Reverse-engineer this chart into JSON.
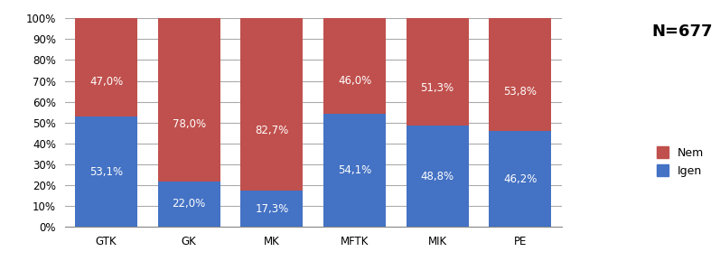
{
  "categories": [
    "GTK",
    "GK",
    "MK",
    "MFTK",
    "MIK",
    "PE"
  ],
  "igen_values": [
    53.1,
    22.0,
    17.3,
    54.1,
    48.8,
    46.2
  ],
  "nem_values": [
    47.0,
    78.0,
    82.7,
    46.0,
    51.3,
    53.8
  ],
  "igen_labels": [
    "53,1%",
    "22,0%",
    "17,3%",
    "54,1%",
    "48,8%",
    "46,2%"
  ],
  "nem_labels": [
    "47,0%",
    "78,0%",
    "82,7%",
    "46,0%",
    "51,3%",
    "53,8%"
  ],
  "igen_color": "#4472C4",
  "nem_color": "#C0504D",
  "bar_width": 0.75,
  "title_annotation": "N=677",
  "ylabel_ticks": [
    "0%",
    "10%",
    "20%",
    "30%",
    "40%",
    "50%",
    "60%",
    "70%",
    "80%",
    "90%",
    "100%"
  ],
  "ytick_vals": [
    0,
    10,
    20,
    30,
    40,
    50,
    60,
    70,
    80,
    90,
    100
  ],
  "legend_nem": "Nem",
  "legend_igen": "Igen",
  "background_color": "#FFFFFF",
  "plot_bg_color": "#FFFFFF",
  "grid_color": "#AAAAAA",
  "label_fontsize": 8.5,
  "tick_fontsize": 8.5,
  "legend_fontsize": 9,
  "annotation_fontsize": 13
}
